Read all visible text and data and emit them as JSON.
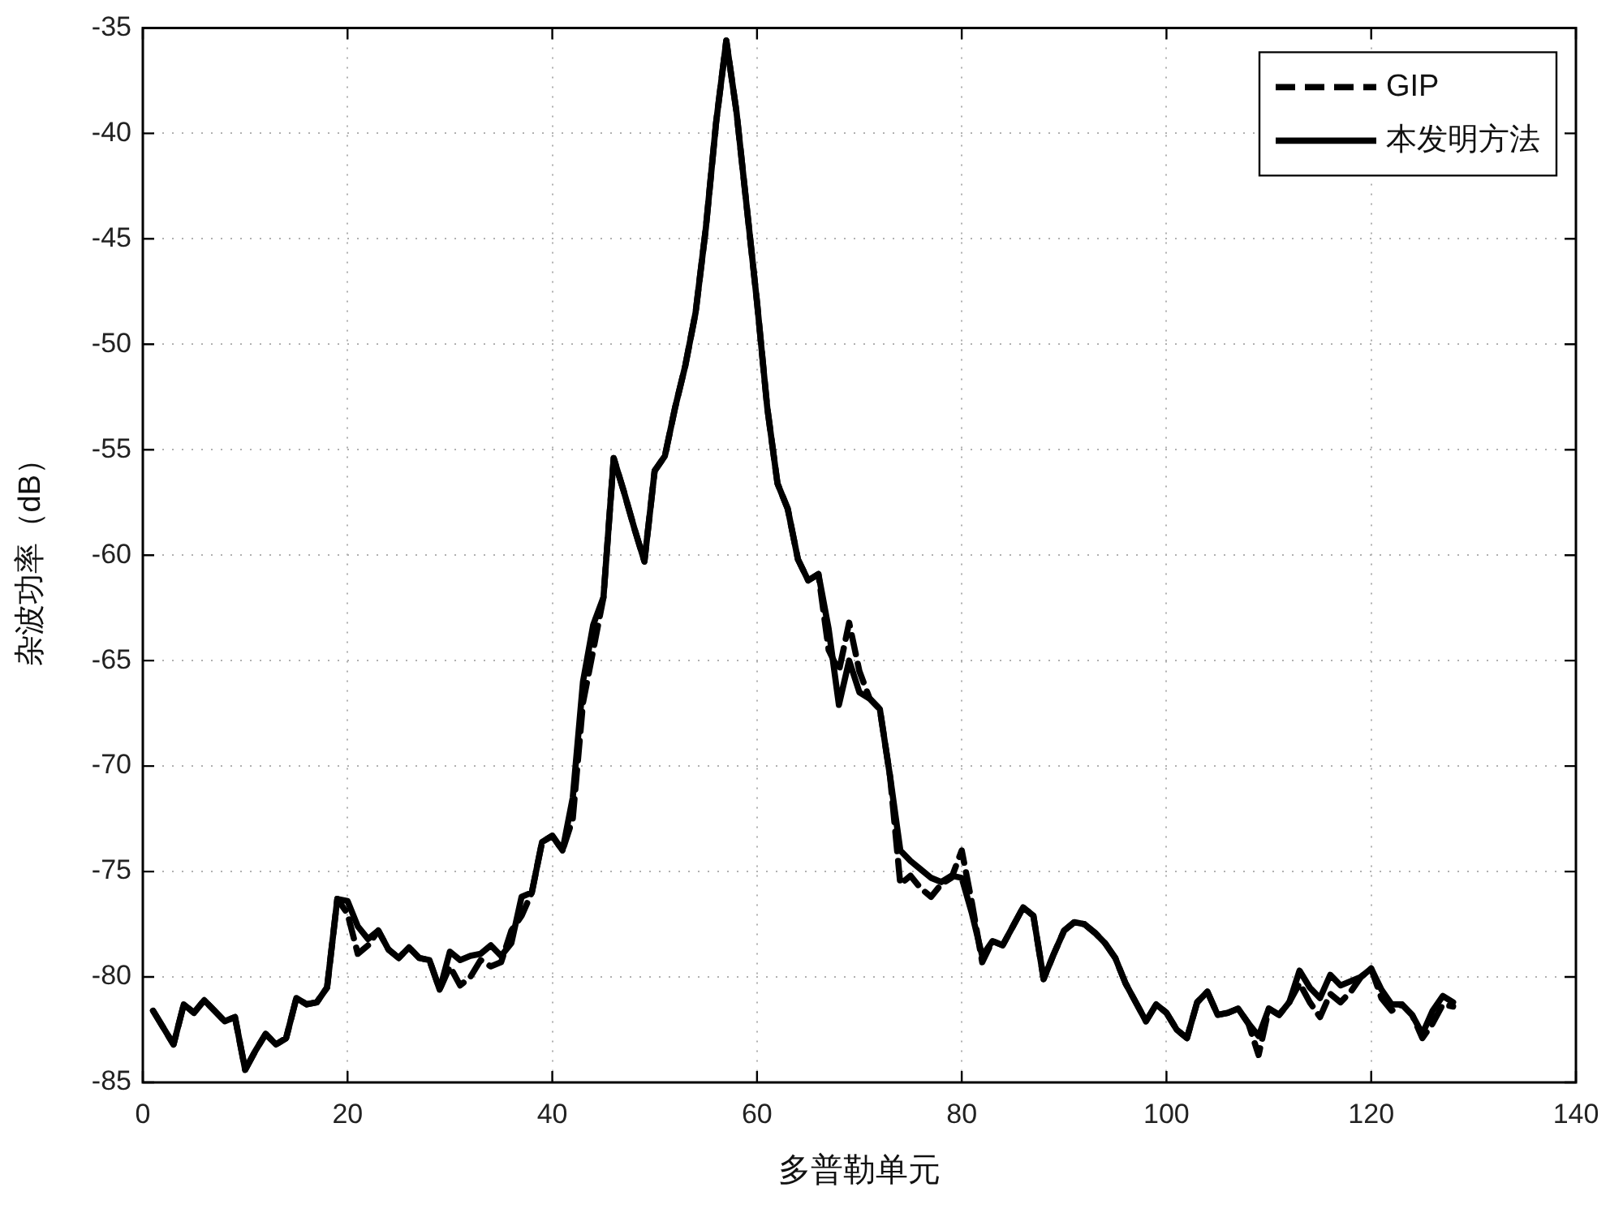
{
  "chart_data": {
    "type": "line",
    "xlabel": "多普勒单元",
    "ylabel": "杂波功率（dB）",
    "xlim": [
      0,
      140
    ],
    "xticks": [
      0,
      20,
      40,
      60,
      80,
      100,
      120,
      140
    ],
    "ylim": [
      -85,
      -35
    ],
    "yticks": [
      -85,
      -80,
      -75,
      -70,
      -65,
      -60,
      -55,
      -50,
      -45,
      -40,
      -35
    ],
    "grid": true,
    "legend": "top right",
    "x": [
      1,
      2,
      3,
      4,
      5,
      6,
      7,
      8,
      9,
      10,
      11,
      12,
      13,
      14,
      15,
      16,
      17,
      18,
      19,
      20,
      21,
      22,
      23,
      24,
      25,
      26,
      27,
      28,
      29,
      30,
      31,
      32,
      33,
      34,
      35,
      36,
      37,
      38,
      39,
      40,
      41,
      42,
      43,
      44,
      45,
      46,
      47,
      48,
      49,
      50,
      51,
      52,
      53,
      54,
      55,
      56,
      57,
      58,
      59,
      60,
      61,
      62,
      63,
      64,
      65,
      66,
      67,
      68,
      69,
      70,
      71,
      72,
      73,
      74,
      75,
      76,
      77,
      78,
      79,
      80,
      81,
      82,
      83,
      84,
      85,
      86,
      87,
      88,
      89,
      90,
      91,
      92,
      93,
      94,
      95,
      96,
      97,
      98,
      99,
      100,
      101,
      102,
      103,
      104,
      105,
      106,
      107,
      108,
      109,
      110,
      111,
      112,
      113,
      114,
      115,
      116,
      117,
      118,
      119,
      120,
      121,
      122,
      123,
      124,
      125,
      126,
      127,
      128
    ],
    "series": [
      {
        "name": "GIP",
        "color": "#000000",
        "line_style": "dashed",
        "values": [
          -81.6,
          -82.4,
          -83.2,
          -81.3,
          -81.7,
          -81.1,
          -81.6,
          -82.1,
          -81.9,
          -84.4,
          -83.5,
          -82.7,
          -83.2,
          -82.9,
          -81.0,
          -81.3,
          -81.2,
          -80.5,
          -76.3,
          -77.0,
          -78.9,
          -78.5,
          -77.8,
          -78.7,
          -79.1,
          -78.6,
          -79.1,
          -79.2,
          -80.6,
          -79.5,
          -80.4,
          -80.0,
          -79.2,
          -79.5,
          -79.3,
          -77.8,
          -77.1,
          -76.0,
          -73.6,
          -73.3,
          -74.0,
          -72.5,
          -67.0,
          -64.5,
          -62.0,
          -55.4,
          -57.0,
          -58.7,
          -60.3,
          -56.0,
          -55.3,
          -53.0,
          -51.0,
          -48.5,
          -44.5,
          -39.5,
          -35.6,
          -39.0,
          -43.5,
          -48.0,
          -53.0,
          -56.6,
          -57.8,
          -60.2,
          -61.2,
          -60.9,
          -64.5,
          -65.5,
          -63.2,
          -65.5,
          -66.8,
          -67.3,
          -70.5,
          -75.6,
          -75.2,
          -75.8,
          -76.2,
          -75.6,
          -75.3,
          -74.0,
          -76.5,
          -79.3,
          -78.3,
          -78.5,
          -77.6,
          -76.7,
          -77.1,
          -80.1,
          -78.9,
          -77.8,
          -77.4,
          -77.5,
          -77.9,
          -78.4,
          -79.1,
          -80.3,
          -81.2,
          -82.1,
          -81.3,
          -81.7,
          -82.5,
          -82.9,
          -81.2,
          -80.7,
          -81.8,
          -81.7,
          -81.5,
          -82.2,
          -83.7,
          -81.5,
          -81.8,
          -81.2,
          -80.3,
          -81.2,
          -81.9,
          -80.8,
          -81.2,
          -80.7,
          -80.0,
          -79.6,
          -81.0,
          -81.6,
          -81.3,
          -81.8,
          -82.9,
          -82.2,
          -81.3,
          -81.4
        ]
      },
      {
        "name": "本发明方法",
        "color": "#000000",
        "line_style": "solid",
        "values": [
          -81.6,
          -82.4,
          -83.2,
          -81.3,
          -81.7,
          -81.1,
          -81.6,
          -82.1,
          -81.9,
          -84.4,
          -83.5,
          -82.7,
          -83.2,
          -82.9,
          -81.0,
          -81.3,
          -81.2,
          -80.5,
          -76.3,
          -76.4,
          -77.6,
          -78.2,
          -77.8,
          -78.7,
          -79.1,
          -78.6,
          -79.1,
          -79.2,
          -80.6,
          -78.8,
          -79.2,
          -79.0,
          -78.9,
          -78.5,
          -79.0,
          -78.4,
          -76.2,
          -76.0,
          -73.6,
          -73.3,
          -74.0,
          -71.5,
          -66.0,
          -63.3,
          -62.0,
          -55.4,
          -57.0,
          -58.7,
          -60.3,
          -56.0,
          -55.3,
          -53.0,
          -51.0,
          -48.5,
          -44.5,
          -39.5,
          -35.6,
          -39.0,
          -43.5,
          -48.0,
          -53.0,
          -56.6,
          -57.8,
          -60.2,
          -61.2,
          -60.9,
          -63.5,
          -67.1,
          -65.0,
          -66.5,
          -66.8,
          -67.3,
          -70.5,
          -74.0,
          -74.5,
          -74.9,
          -75.3,
          -75.5,
          -75.2,
          -75.3,
          -77.0,
          -79.0,
          -78.3,
          -78.5,
          -77.6,
          -76.7,
          -77.1,
          -80.1,
          -78.9,
          -77.8,
          -77.4,
          -77.5,
          -77.9,
          -78.4,
          -79.1,
          -80.3,
          -81.2,
          -82.1,
          -81.3,
          -81.7,
          -82.5,
          -82.9,
          -81.2,
          -80.7,
          -81.8,
          -81.7,
          -81.5,
          -82.2,
          -82.8,
          -81.5,
          -81.8,
          -81.2,
          -79.7,
          -80.5,
          -81.0,
          -79.9,
          -80.4,
          -80.2,
          -80.0,
          -79.6,
          -80.6,
          -81.3,
          -81.3,
          -81.8,
          -82.7,
          -81.6,
          -80.9,
          -81.2
        ]
      }
    ]
  }
}
